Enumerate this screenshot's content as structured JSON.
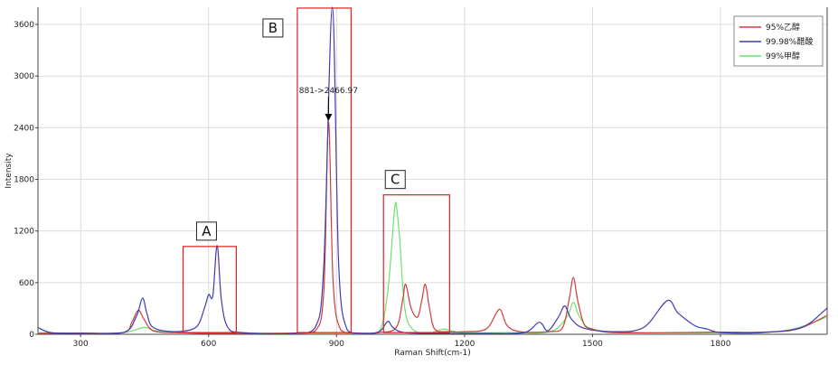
{
  "chart_data": {
    "type": "line",
    "xlabel": "Raman Shift(cm-1)",
    "ylabel": "Intensity",
    "xlim": [
      200,
      2050
    ],
    "ylim": [
      0,
      3800
    ],
    "x_ticks": [
      300,
      600,
      900,
      1200,
      1500,
      1800
    ],
    "y_ticks": [
      0,
      600,
      1200,
      1800,
      2400,
      3000,
      3600
    ],
    "grid": true,
    "legend_position": "top-right",
    "series": [
      {
        "name": "95%乙醇",
        "color": "#d23c3c",
        "points": [
          [
            200,
            10
          ],
          [
            300,
            15
          ],
          [
            400,
            20
          ],
          [
            420,
            140
          ],
          [
            435,
            280
          ],
          [
            448,
            180
          ],
          [
            470,
            40
          ],
          [
            520,
            20
          ],
          [
            560,
            15
          ],
          [
            600,
            10
          ],
          [
            700,
            10
          ],
          [
            800,
            15
          ],
          [
            850,
            40
          ],
          [
            870,
            500
          ],
          [
            881,
            2467
          ],
          [
            892,
            600
          ],
          [
            910,
            50
          ],
          [
            950,
            15
          ],
          [
            1000,
            20
          ],
          [
            1040,
            80
          ],
          [
            1055,
            400
          ],
          [
            1062,
            580
          ],
          [
            1075,
            300
          ],
          [
            1090,
            200
          ],
          [
            1100,
            400
          ],
          [
            1108,
            580
          ],
          [
            1118,
            300
          ],
          [
            1130,
            60
          ],
          [
            1160,
            30
          ],
          [
            1200,
            30
          ],
          [
            1250,
            60
          ],
          [
            1275,
            250
          ],
          [
            1285,
            280
          ],
          [
            1300,
            100
          ],
          [
            1330,
            30
          ],
          [
            1400,
            30
          ],
          [
            1430,
            80
          ],
          [
            1445,
            400
          ],
          [
            1455,
            660
          ],
          [
            1465,
            400
          ],
          [
            1480,
            120
          ],
          [
            1500,
            60
          ],
          [
            1550,
            20
          ],
          [
            1700,
            20
          ],
          [
            1800,
            25
          ],
          [
            1900,
            25
          ],
          [
            1980,
            60
          ],
          [
            2050,
            220
          ]
        ]
      },
      {
        "name": "99.98%醋酸",
        "color": "#3d3db0",
        "points": [
          [
            200,
            80
          ],
          [
            230,
            20
          ],
          [
            300,
            10
          ],
          [
            400,
            20
          ],
          [
            430,
            200
          ],
          [
            445,
            420
          ],
          [
            455,
            250
          ],
          [
            470,
            80
          ],
          [
            520,
            30
          ],
          [
            570,
            80
          ],
          [
            590,
            300
          ],
          [
            600,
            460
          ],
          [
            610,
            450
          ],
          [
            620,
            1030
          ],
          [
            630,
            400
          ],
          [
            645,
            80
          ],
          [
            680,
            20
          ],
          [
            800,
            10
          ],
          [
            850,
            80
          ],
          [
            870,
            800
          ],
          [
            890,
            3800
          ],
          [
            905,
            800
          ],
          [
            925,
            50
          ],
          [
            960,
            10
          ],
          [
            1000,
            30
          ],
          [
            1020,
            150
          ],
          [
            1032,
            80
          ],
          [
            1060,
            20
          ],
          [
            1150,
            10
          ],
          [
            1250,
            10
          ],
          [
            1340,
            20
          ],
          [
            1375,
            140
          ],
          [
            1395,
            40
          ],
          [
            1420,
            200
          ],
          [
            1435,
            330
          ],
          [
            1450,
            180
          ],
          [
            1480,
            70
          ],
          [
            1550,
            30
          ],
          [
            1620,
            80
          ],
          [
            1675,
            390
          ],
          [
            1700,
            250
          ],
          [
            1740,
            100
          ],
          [
            1770,
            60
          ],
          [
            1800,
            20
          ],
          [
            1900,
            20
          ],
          [
            1990,
            80
          ],
          [
            2040,
            260
          ],
          [
            2050,
            310
          ]
        ]
      },
      {
        "name": "99%甲醇",
        "color": "#6ee06e",
        "points": [
          [
            200,
            20
          ],
          [
            300,
            10
          ],
          [
            400,
            20
          ],
          [
            450,
            80
          ],
          [
            480,
            40
          ],
          [
            600,
            15
          ],
          [
            800,
            10
          ],
          [
            960,
            10
          ],
          [
            1000,
            30
          ],
          [
            1020,
            500
          ],
          [
            1035,
            1400
          ],
          [
            1040,
            1500
          ],
          [
            1048,
            1100
          ],
          [
            1060,
            300
          ],
          [
            1080,
            50
          ],
          [
            1120,
            20
          ],
          [
            1150,
            60
          ],
          [
            1170,
            40
          ],
          [
            1200,
            20
          ],
          [
            1300,
            20
          ],
          [
            1400,
            30
          ],
          [
            1440,
            200
          ],
          [
            1455,
            370
          ],
          [
            1470,
            200
          ],
          [
            1500,
            60
          ],
          [
            1600,
            20
          ],
          [
            1800,
            20
          ],
          [
            1950,
            40
          ],
          [
            2050,
            200
          ]
        ]
      }
    ],
    "annotations": [
      {
        "text": "881->2466.97",
        "x": 881,
        "y": 2467
      }
    ],
    "region_labels": [
      {
        "label": "A",
        "x_range": [
          540,
          665
        ],
        "y_range": [
          20,
          1020
        ]
      },
      {
        "label": "B",
        "x_range": [
          808,
          934
        ],
        "y_range": [
          20,
          3790
        ]
      },
      {
        "label": "C",
        "x_range": [
          1010,
          1165
        ],
        "y_range": [
          20,
          1620
        ]
      }
    ]
  }
}
